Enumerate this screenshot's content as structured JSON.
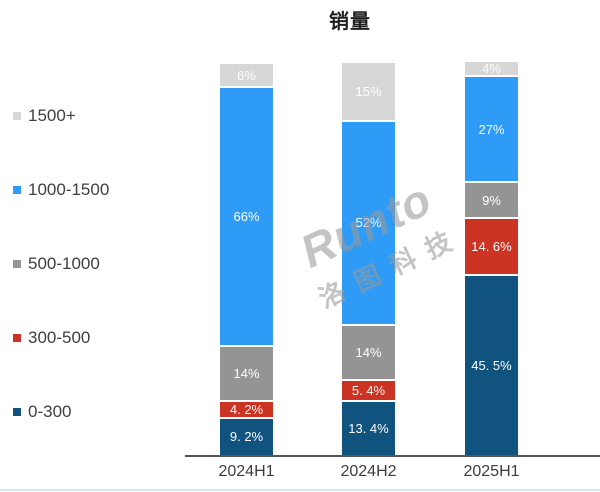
{
  "chart": {
    "title": "销量",
    "watermark": {
      "line1": "Runto",
      "line2": "洛图科技"
    }
  },
  "chart_data": {
    "type": "bar",
    "subtype": "stacked-100-percent",
    "title": "销量",
    "categories": [
      "2024H1",
      "2024H2",
      "2025H1"
    ],
    "series": [
      {
        "name": "1500+",
        "color": "#d7d7d7",
        "values": [
          6,
          15,
          4
        ],
        "labels": [
          "6%",
          "15%",
          "4%"
        ]
      },
      {
        "name": "1000-1500",
        "color": "#2e9bf7",
        "values": [
          66,
          52,
          27
        ],
        "labels": [
          "66%",
          "52%",
          "27%"
        ]
      },
      {
        "name": "500-1000",
        "color": "#949494",
        "values": [
          14,
          14,
          9
        ],
        "labels": [
          "14%",
          "14%",
          "9%"
        ]
      },
      {
        "name": "300-500",
        "color": "#cb3423",
        "values": [
          4.2,
          5.4,
          14.6
        ],
        "labels": [
          "4. 2%",
          "5. 4%",
          "14. 6%"
        ]
      },
      {
        "name": "0-300",
        "color": "#10537e",
        "values": [
          9.2,
          13.4,
          45.5
        ],
        "labels": [
          "9. 2%",
          "13. 4%",
          "45. 5%"
        ]
      }
    ],
    "stack_order_top_to_bottom": [
      "1500+",
      "1000-1500",
      "500-1000",
      "300-500",
      "0-300"
    ],
    "value_format": "percent",
    "ylim": [
      0,
      100
    ],
    "grid": false,
    "legend_position": "left",
    "label_color": "#ffffff",
    "axis_line_color": "#55565a"
  }
}
